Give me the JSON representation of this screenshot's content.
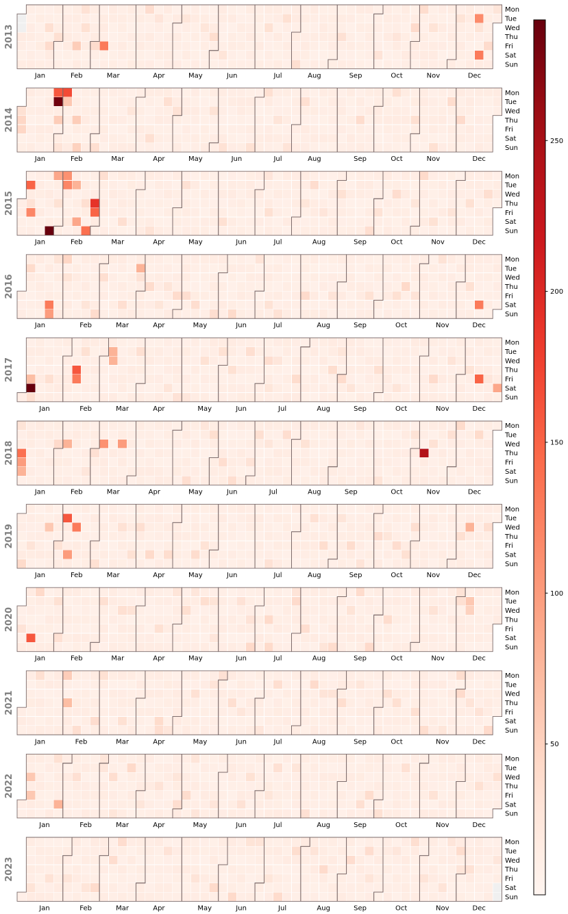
{
  "chart_data": {
    "type": "heatmap",
    "subtype": "calendar",
    "colormap": "Reds",
    "color_low": "#fff5f0",
    "color_high": "#67000d",
    "value_range": [
      0,
      290
    ],
    "colorbar_ticks": [
      50,
      100,
      150,
      200,
      250
    ],
    "years": [
      "2013",
      "2014",
      "2015",
      "2016",
      "2017",
      "2018",
      "2019",
      "2020",
      "2021",
      "2022",
      "2023"
    ],
    "weekday_labels": [
      "Mon",
      "Tue",
      "Wed",
      "Thu",
      "Fri",
      "Sat",
      "Sun"
    ],
    "month_labels": [
      "Jan",
      "Feb",
      "Mar",
      "Apr",
      "May",
      "Jun",
      "Jul",
      "Aug",
      "Sep",
      "Oct",
      "Nov",
      "Dec"
    ],
    "baseline_value": 8,
    "missing_days": [
      {
        "date": "2013-01-01"
      },
      {
        "date": "2013-01-02"
      },
      {
        "date": "2023-12-30"
      },
      {
        "date": "2023-12-31"
      }
    ],
    "notable_days": [
      {
        "date": "2013-03-08",
        "value": 130
      },
      {
        "date": "2013-12-17",
        "value": 115
      },
      {
        "date": "2013-12-21",
        "value": 130
      },
      {
        "date": "2013-03-01",
        "value": 40
      },
      {
        "date": "2013-11-13",
        "value": 30
      },
      {
        "date": "2013-02-15",
        "value": 55
      },
      {
        "date": "2013-01-25",
        "value": 40
      },
      {
        "date": "2014-01-27",
        "value": 160
      },
      {
        "date": "2014-01-28",
        "value": 285
      },
      {
        "date": "2014-02-03",
        "value": 170
      },
      {
        "date": "2014-02-04",
        "value": 60
      },
      {
        "date": "2014-01-30",
        "value": 55
      },
      {
        "date": "2014-02-13",
        "value": 55
      },
      {
        "date": "2014-02-16",
        "value": 50
      },
      {
        "date": "2014-01-02",
        "value": 45
      },
      {
        "date": "2014-01-03",
        "value": 45
      },
      {
        "date": "2015-01-06",
        "value": 150
      },
      {
        "date": "2015-01-09",
        "value": 120
      },
      {
        "date": "2015-01-25",
        "value": 290
      },
      {
        "date": "2015-02-02",
        "value": 110
      },
      {
        "date": "2015-02-03",
        "value": 120
      },
      {
        "date": "2015-02-10",
        "value": 80
      },
      {
        "date": "2015-02-14",
        "value": 90
      },
      {
        "date": "2015-02-22",
        "value": 140
      },
      {
        "date": "2015-02-26",
        "value": 190
      },
      {
        "date": "2015-02-27",
        "value": 150
      },
      {
        "date": "2015-01-26",
        "value": 90
      },
      {
        "date": "2016-01-23",
        "value": 130
      },
      {
        "date": "2016-01-24",
        "value": 100
      },
      {
        "date": "2016-03-29",
        "value": 80
      },
      {
        "date": "2016-12-17",
        "value": 130
      },
      {
        "date": "2016-02-01",
        "value": 45
      },
      {
        "date": "2017-01-07",
        "value": 290
      },
      {
        "date": "2017-01-06",
        "value": 70
      },
      {
        "date": "2017-02-09",
        "value": 160
      },
      {
        "date": "2017-02-10",
        "value": 130
      },
      {
        "date": "2017-03-07",
        "value": 80
      },
      {
        "date": "2017-03-08",
        "value": 80
      },
      {
        "date": "2017-12-15",
        "value": 150
      },
      {
        "date": "2017-12-30",
        "value": 90
      },
      {
        "date": "2018-01-04",
        "value": 140
      },
      {
        "date": "2018-01-05",
        "value": 100
      },
      {
        "date": "2018-01-06",
        "value": 80
      },
      {
        "date": "2018-02-07",
        "value": 80
      },
      {
        "date": "2018-03-07",
        "value": 110
      },
      {
        "date": "2018-03-21",
        "value": 100
      },
      {
        "date": "2018-11-08",
        "value": 240
      },
      {
        "date": "2019-02-05",
        "value": 160
      },
      {
        "date": "2019-02-13",
        "value": 130
      },
      {
        "date": "2019-02-09",
        "value": 100
      },
      {
        "date": "2019-01-23",
        "value": 60
      },
      {
        "date": "2019-12-11",
        "value": 80
      },
      {
        "date": "2020-01-11",
        "value": 160
      },
      {
        "date": "2020-12-08",
        "value": 60
      },
      {
        "date": "2020-12-09",
        "value": 50
      },
      {
        "date": "2021-02-04",
        "value": 70
      },
      {
        "date": "2021-02-01",
        "value": 55
      },
      {
        "date": "2022-01-05",
        "value": 60
      },
      {
        "date": "2022-01-07",
        "value": 60
      },
      {
        "date": "2022-01-29",
        "value": 80
      }
    ]
  }
}
